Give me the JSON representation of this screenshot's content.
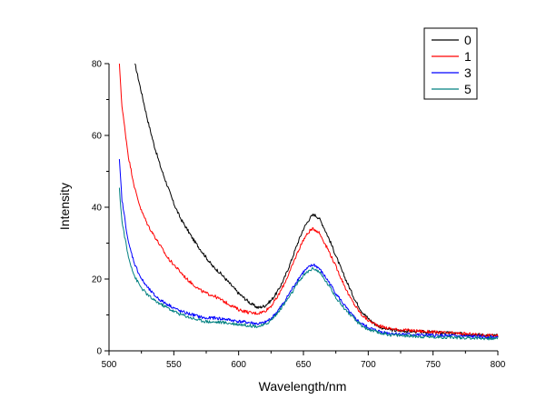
{
  "chart_data": {
    "type": "line",
    "title": "",
    "xlabel": "Wavelength/nm",
    "ylabel": "Intensity",
    "xlim": [
      500,
      800
    ],
    "ylim": [
      0,
      80
    ],
    "xticks": [
      500,
      550,
      600,
      650,
      700,
      750,
      800
    ],
    "yticks": [
      0,
      20,
      40,
      60,
      80
    ],
    "grid": false,
    "legend_position": "top-right",
    "series": [
      {
        "name": "0",
        "color": "#000000",
        "x": [
          520,
          525,
          530,
          535,
          540,
          545,
          550,
          555,
          560,
          565,
          570,
          575,
          580,
          585,
          590,
          595,
          600,
          605,
          610,
          615,
          620,
          625,
          630,
          635,
          640,
          645,
          650,
          655,
          658,
          662,
          665,
          670,
          675,
          680,
          685,
          690,
          695,
          700,
          705,
          710,
          715,
          720,
          730,
          740,
          750,
          760,
          770,
          780,
          790,
          800
        ],
        "y": [
          80,
          72,
          64,
          57,
          51,
          46,
          41,
          37,
          34,
          31,
          28.5,
          26,
          23.5,
          22,
          20,
          18,
          16,
          14.5,
          13,
          12,
          12.5,
          14,
          16.5,
          20,
          24.5,
          29.5,
          34,
          37,
          38,
          37,
          35,
          31,
          26.5,
          22,
          18,
          14,
          11,
          9,
          7.5,
          6.5,
          6,
          5.7,
          5.5,
          5.3,
          5.2,
          5,
          4.8,
          4.6,
          4.4,
          4.2
        ]
      },
      {
        "name": "1",
        "color": "#ff0000",
        "x": [
          508,
          510,
          515,
          520,
          525,
          530,
          535,
          540,
          545,
          550,
          555,
          560,
          565,
          570,
          575,
          580,
          585,
          590,
          595,
          600,
          605,
          610,
          615,
          620,
          625,
          630,
          635,
          640,
          645,
          650,
          655,
          658,
          662,
          665,
          670,
          675,
          680,
          685,
          690,
          695,
          700,
          705,
          710,
          715,
          720,
          730,
          740,
          750,
          760,
          770,
          780,
          790,
          800
        ],
        "y": [
          80,
          68,
          54,
          45,
          39,
          35,
          32,
          29,
          26,
          24,
          22,
          20,
          18.5,
          17,
          16,
          15.5,
          14.5,
          13.5,
          12.5,
          11.5,
          11,
          10.5,
          10.5,
          11,
          12.5,
          15,
          18.5,
          22.5,
          27,
          31,
          33.5,
          34,
          33,
          31,
          27.5,
          23.5,
          19.5,
          15.5,
          12.5,
          10,
          8.5,
          7.5,
          6.8,
          6.3,
          6,
          5.7,
          5.5,
          5.2,
          5,
          4.8,
          4.6,
          4.4,
          4.2
        ]
      },
      {
        "name": "3",
        "color": "#0000ff",
        "x": [
          508,
          510,
          515,
          520,
          525,
          530,
          535,
          540,
          545,
          550,
          555,
          560,
          565,
          570,
          575,
          580,
          585,
          590,
          595,
          600,
          605,
          610,
          615,
          620,
          625,
          630,
          635,
          640,
          645,
          650,
          655,
          658,
          662,
          665,
          670,
          675,
          680,
          685,
          690,
          695,
          700,
          705,
          710,
          715,
          720,
          730,
          740,
          750,
          760,
          770,
          780,
          790,
          800
        ],
        "y": [
          53,
          42,
          30,
          24,
          20,
          17.5,
          15.5,
          14,
          13,
          12,
          11,
          10.5,
          10,
          9.5,
          9,
          9.2,
          9,
          8.8,
          8.5,
          8.2,
          8,
          7.8,
          7.5,
          7.8,
          9,
          11,
          13.5,
          16.5,
          19.5,
          22,
          23.5,
          24,
          23,
          21.5,
          19,
          16,
          13.5,
          11,
          9,
          7.5,
          6.5,
          5.8,
          5.3,
          5,
          4.8,
          4.6,
          4.4,
          4.3,
          4.2,
          4.1,
          4,
          3.9,
          3.8
        ]
      },
      {
        "name": "5",
        "color": "#008080",
        "x": [
          508,
          510,
          515,
          520,
          525,
          530,
          535,
          540,
          545,
          550,
          555,
          560,
          565,
          570,
          575,
          580,
          585,
          590,
          595,
          600,
          605,
          610,
          615,
          620,
          625,
          630,
          635,
          640,
          645,
          650,
          655,
          658,
          662,
          665,
          670,
          675,
          680,
          685,
          690,
          695,
          700,
          705,
          710,
          715,
          720,
          730,
          740,
          750,
          760,
          770,
          780,
          790,
          800
        ],
        "y": [
          45,
          36,
          26,
          20.5,
          17.5,
          15.5,
          14,
          13,
          12,
          11,
          10.2,
          9.6,
          9,
          8.5,
          8.2,
          8,
          8,
          7.8,
          7.6,
          7.4,
          7.2,
          7,
          6.8,
          7.2,
          8.5,
          10.5,
          13,
          15.5,
          18.5,
          21,
          22.5,
          23,
          22,
          20.5,
          18,
          15,
          12.5,
          10.5,
          8.5,
          7,
          6,
          5.3,
          4.9,
          4.6,
          4.4,
          4.2,
          4,
          3.9,
          3.8,
          3.7,
          3.6,
          3.5,
          3.4
        ]
      }
    ]
  }
}
